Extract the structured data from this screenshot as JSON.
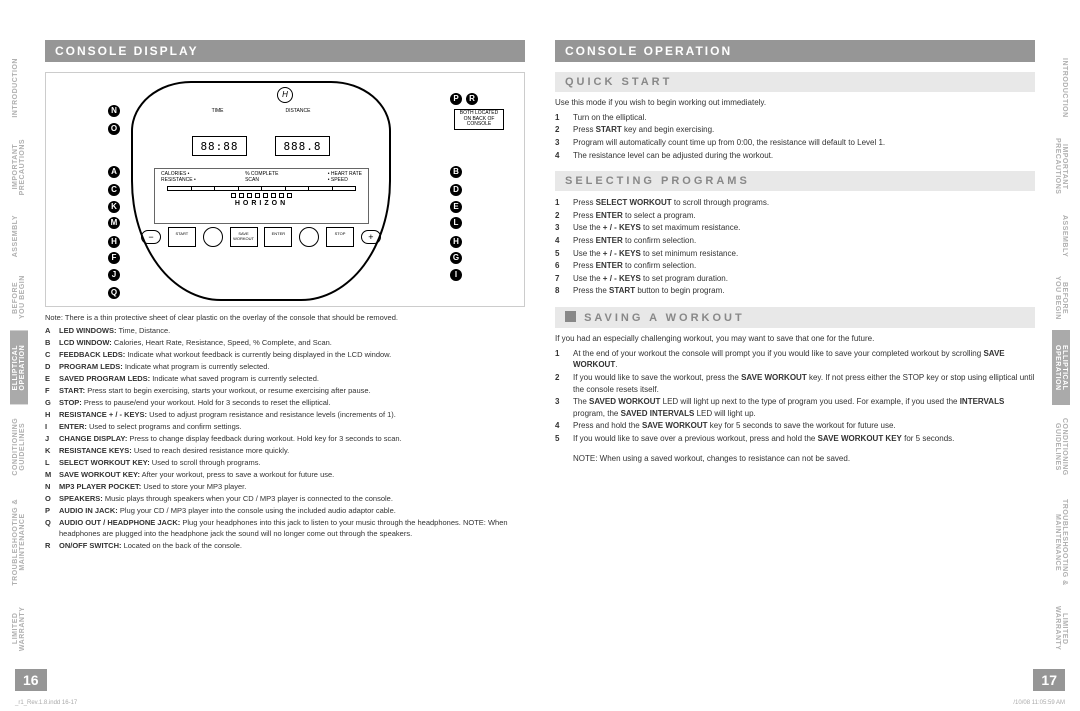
{
  "sideTabs": {
    "left": [
      "INTRODUCTION",
      "IMPORTANT PRECAUTIONS",
      "ASSEMBLY",
      "BEFORE YOU BEGIN",
      "ELLIPTICAL OPERATION",
      "CONDITIONING GUIDELINES",
      "TROUBLESHOOTING & MAINTENANCE",
      "LIMITED WARRANTY"
    ],
    "right": [
      "INTRODUCTION",
      "IMPORTANT PRECAUTIONS",
      "ASSEMBLY",
      "BEFORE YOU BEGIN",
      "ELLIPTICAL OPERATION",
      "CONDITIONING GUIDELINES",
      "TROUBLESHOOTING & MAINTENANCE",
      "LIMITED WARRANTY"
    ],
    "activeIndex": 4
  },
  "left": {
    "header": "CONSOLE DISPLAY",
    "note": "Note: There is a thin protective sheet of clear plastic on the overlay of the console that should be removed.",
    "defs": [
      {
        "k": "A",
        "t": "LED WINDOWS:",
        "d": " Time, Distance."
      },
      {
        "k": "B",
        "t": "LCD WINDOW:",
        "d": " Calories, Heart Rate, Resistance, Speed, % Complete, and Scan."
      },
      {
        "k": "C",
        "t": "FEEDBACK LEDS:",
        "d": " Indicate what workout feedback is currently being displayed in the LCD window."
      },
      {
        "k": "D",
        "t": "PROGRAM LEDS:",
        "d": " Indicate what program is currently selected."
      },
      {
        "k": "E",
        "t": "SAVED PROGRAM LEDS:",
        "d": " Indicate what saved program is currently selected."
      },
      {
        "k": "F",
        "t": "START:",
        "d": " Press start to begin exercising, starts your workout, or resume exercising after pause."
      },
      {
        "k": "G",
        "t": "STOP:",
        "d": " Press to pause/end your workout. Hold for 3 seconds to reset the elliptical."
      },
      {
        "k": "H",
        "t": "RESISTANCE + / - KEYS:",
        "d": " Used to adjust program resistance and resistance levels (increments of 1)."
      },
      {
        "k": "I",
        "t": "ENTER:",
        "d": " Used to select programs and confirm settings."
      },
      {
        "k": "J",
        "t": "CHANGE DISPLAY:",
        "d": " Press to change display feedback during workout. Hold key for 3 seconds to scan."
      },
      {
        "k": "K",
        "t": "RESISTANCE KEYS:",
        "d": " Used to reach desired resistance more quickly."
      },
      {
        "k": "L",
        "t": "SELECT WORKOUT KEY:",
        "d": " Used to scroll through programs."
      },
      {
        "k": "M",
        "t": "SAVE WORKOUT KEY:",
        "d": " After your workout, press to save a workout for future use."
      },
      {
        "k": "N",
        "t": "MP3 PLAYER POCKET:",
        "d": " Used to store your MP3 player."
      },
      {
        "k": "O",
        "t": "SPEAKERS:",
        "d": " Music plays through speakers when your CD / MP3 player is connected to the console."
      },
      {
        "k": "P",
        "t": "AUDIO IN JACK:",
        "d": " Plug your CD / MP3 player into the console using the included audio adaptor cable."
      },
      {
        "k": "Q",
        "t": "AUDIO OUT / HEADPHONE JACK:",
        "d": " Plug your headphones into this jack to listen to your music through the headphones. NOTE: When headphones are plugged into the headphone jack the sound will no longer come out through the speakers."
      },
      {
        "k": "R",
        "t": "ON/OFF SWITCH:",
        "d": " Located on the back of the console."
      }
    ],
    "pageNum": "16",
    "footerLeft": "_r1_Rev.1.8.indd   16-17",
    "console": {
      "timeLabel": "TIME",
      "distLabel": "DISTANCE",
      "time": "88:88",
      "dist": "888.8",
      "brand": "HORIZON",
      "backNote": "BOTH LOCATED ON BACK OF CONSOLE",
      "btns": {
        "start": "START",
        "save": "SAVE WORKOUT",
        "enter": "ENTER",
        "stop": "STOP"
      },
      "mid": {
        "l1": "CALORIES",
        "l2": "RESISTANCE",
        "r1": "HEART RATE",
        "r2": "SPEED",
        "c1": "% COMPLETE",
        "c2": "SCAN"
      }
    }
  },
  "right": {
    "header": "CONSOLE OPERATION",
    "quick": {
      "title": "QUICK START",
      "intro": "Use this mode if you wish to begin working out immediately.",
      "items": [
        "Turn on the elliptical.",
        "Press <b>START</b> key and begin exercising.",
        "Program will automatically count time up from 0:00, the resistance will default to Level 1.",
        "The resistance level can be adjusted during the workout."
      ]
    },
    "select": {
      "title": "SELECTING PROGRAMS",
      "items": [
        "Press <b>SELECT WORKOUT</b> to scroll through programs.",
        "Press <b>ENTER</b> to select a program.",
        "Use the <b>+ / - KEYS</b> to set maximum resistance.",
        "Press <b>ENTER</b> to confirm selection.",
        "Use the <b>+ / - KEYS</b> to set minimum resistance.",
        "Press <b>ENTER</b> to confirm selection.",
        "Use the <b>+ / - KEYS</b> to set program duration.",
        "Press the <b>START</b> button to begin program."
      ]
    },
    "save": {
      "title": "SAVING A WORKOUT",
      "intro": "If you had an especially challenging workout, you may want to save that one for the future.",
      "items": [
        "At the end of your workout the console will prompt you if you would like to save your completed workout by scrolling <b>SAVE WORKOUT</b>.",
        "If you would like to save the workout, press the <b>SAVE WORKOUT</b> key. If not press either the STOP key or stop using elliptical until the console resets itself.",
        "The <b>SAVED WORKOUT</b> LED will light up next to the type of program you used. For example, if you used the <b>INTERVALS</b> program, the <b>SAVED INTERVALS</b> LED will light up.",
        "Press and hold the <b>SAVE WORKOUT</b> key for 5 seconds to save the workout for future use.",
        "If you would like to save over a previous workout, press and hold the <b>SAVE WORKOUT KEY</b> for 5 seconds."
      ],
      "note": "NOTE: When using a saved workout, changes to resistance can not be saved."
    },
    "pageNum": "17",
    "footerRight": "/10/08   11:05:59 AM"
  }
}
